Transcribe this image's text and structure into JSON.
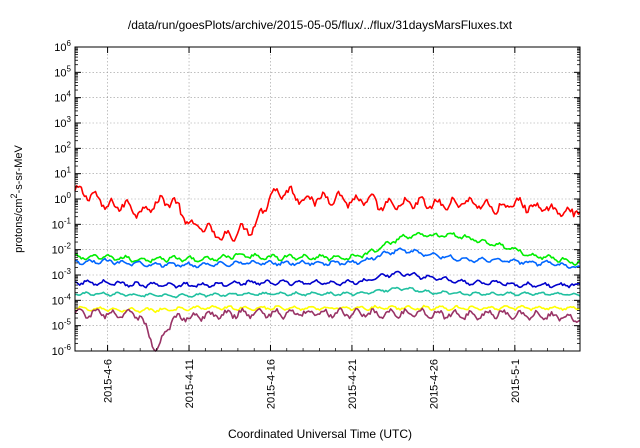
{
  "chart_data": {
    "type": "line",
    "title": "/data/run/goesPlots/archive/2015-05-05/flux/../flux/31daysMarsFluxes.txt",
    "xlabel": "Coordinated Universal Time (UTC)",
    "ylabel": "protons/cm2-s-sr-MeV",
    "ylabel_parts": {
      "pre": "protons/cm",
      "sup": "2",
      "post": "-s-sr-MeV"
    },
    "yscale": "log",
    "ylim": [
      1e-06,
      1000000.0
    ],
    "yticks": [
      {
        "base": "10",
        "exp": "-6"
      },
      {
        "base": "10",
        "exp": "-5"
      },
      {
        "base": "10",
        "exp": "-4"
      },
      {
        "base": "10",
        "exp": "-3"
      },
      {
        "base": "10",
        "exp": "-2"
      },
      {
        "base": "10",
        "exp": "-1"
      },
      {
        "base": "10",
        "exp": "0"
      },
      {
        "base": "10",
        "exp": "1"
      },
      {
        "base": "10",
        "exp": "2"
      },
      {
        "base": "10",
        "exp": "3"
      },
      {
        "base": "10",
        "exp": "4"
      },
      {
        "base": "10",
        "exp": "5"
      },
      {
        "base": "10",
        "exp": "6"
      }
    ],
    "xlim": [
      "2015-04-04",
      "2015-05-05"
    ],
    "xticks": [
      "2015-4-6",
      "2015-4-11",
      "2015-4-16",
      "2015-4-21",
      "2015-4-26",
      "2015-5-1"
    ],
    "grid": true,
    "series": [
      {
        "color": "#ff0000",
        "x": [
          "2015-04-04",
          "2015-04-05",
          "2015-04-06",
          "2015-04-07",
          "2015-04-08",
          "2015-04-09",
          "2015-04-10",
          "2015-04-11",
          "2015-04-12",
          "2015-04-13",
          "2015-04-14",
          "2015-04-15",
          "2015-04-16",
          "2015-04-17",
          "2015-04-18",
          "2015-04-19",
          "2015-04-20",
          "2015-04-21",
          "2015-04-22",
          "2015-04-23",
          "2015-04-24",
          "2015-04-25",
          "2015-04-26",
          "2015-04-27",
          "2015-04-28",
          "2015-04-29",
          "2015-04-30",
          "2015-05-01",
          "2015-05-02",
          "2015-05-03",
          "2015-05-04",
          "2015-05-05"
        ],
        "values": [
          2.0,
          1.5,
          0.5,
          0.6,
          0.3,
          0.7,
          0.9,
          0.1,
          0.07,
          0.03,
          0.05,
          0.08,
          1.5,
          2.0,
          1.0,
          1.0,
          1.2,
          0.8,
          0.9,
          0.5,
          0.6,
          0.7,
          0.6,
          0.6,
          0.8,
          0.6,
          0.4,
          0.7,
          0.5,
          0.4,
          0.3,
          0.4
        ]
      },
      {
        "color": "#00ee00",
        "x": [
          "2015-04-04",
          "2015-04-06",
          "2015-04-08",
          "2015-04-10",
          "2015-04-12",
          "2015-04-14",
          "2015-04-16",
          "2015-04-18",
          "2015-04-20",
          "2015-04-21",
          "2015-04-22",
          "2015-04-23",
          "2015-04-24",
          "2015-04-25",
          "2015-04-26",
          "2015-04-27",
          "2015-04-28",
          "2015-04-30",
          "2015-05-01",
          "2015-05-02",
          "2015-05-03",
          "2015-05-05"
        ],
        "values": [
          0.005,
          0.005,
          0.004,
          0.0045,
          0.004,
          0.006,
          0.005,
          0.005,
          0.005,
          0.005,
          0.007,
          0.015,
          0.03,
          0.04,
          0.035,
          0.04,
          0.03,
          0.015,
          0.01,
          0.006,
          0.005,
          0.003
        ]
      },
      {
        "color": "#0066ff",
        "x": [
          "2015-04-04",
          "2015-04-06",
          "2015-04-08",
          "2015-04-10",
          "2015-04-12",
          "2015-04-14",
          "2015-04-16",
          "2015-04-18",
          "2015-04-20",
          "2015-04-21",
          "2015-04-22",
          "2015-04-23",
          "2015-04-24",
          "2015-04-25",
          "2015-04-26",
          "2015-04-27",
          "2015-04-28",
          "2015-04-30",
          "2015-05-01",
          "2015-05-02",
          "2015-05-03",
          "2015-05-05"
        ],
        "values": [
          0.003,
          0.0035,
          0.0028,
          0.0025,
          0.0025,
          0.003,
          0.003,
          0.003,
          0.003,
          0.003,
          0.004,
          0.007,
          0.01,
          0.008,
          0.006,
          0.005,
          0.004,
          0.004,
          0.0035,
          0.003,
          0.003,
          0.002
        ]
      },
      {
        "color": "#0000cc",
        "x": [
          "2015-04-04",
          "2015-04-06",
          "2015-04-08",
          "2015-04-10",
          "2015-04-12",
          "2015-04-14",
          "2015-04-16",
          "2015-04-18",
          "2015-04-20",
          "2015-04-21",
          "2015-04-22",
          "2015-04-23",
          "2015-04-24",
          "2015-04-25",
          "2015-04-26",
          "2015-04-27",
          "2015-04-28",
          "2015-04-30",
          "2015-05-01",
          "2015-05-02",
          "2015-05-03",
          "2015-05-05"
        ],
        "values": [
          0.0005,
          0.0005,
          0.0004,
          0.0004,
          0.0004,
          0.0005,
          0.0005,
          0.0005,
          0.0005,
          0.0005,
          0.0006,
          0.001,
          0.0012,
          0.0009,
          0.0008,
          0.0006,
          0.0005,
          0.0005,
          0.0004,
          0.0004,
          0.0004,
          0.0004
        ]
      },
      {
        "color": "#20c0a0",
        "x": [
          "2015-04-04",
          "2015-04-06",
          "2015-04-08",
          "2015-04-10",
          "2015-04-12",
          "2015-04-14",
          "2015-04-16",
          "2015-04-18",
          "2015-04-20",
          "2015-04-21",
          "2015-04-22",
          "2015-04-23",
          "2015-04-24",
          "2015-04-25",
          "2015-04-26",
          "2015-04-27",
          "2015-04-28",
          "2015-04-30",
          "2015-05-01",
          "2015-05-02",
          "2015-05-03",
          "2015-05-05"
        ],
        "values": [
          0.00018,
          0.00018,
          0.00016,
          0.00015,
          0.00016,
          0.00018,
          0.00018,
          0.00018,
          0.00018,
          0.00018,
          0.0002,
          0.00025,
          0.0003,
          0.00025,
          0.0002,
          0.0002,
          0.00018,
          0.00018,
          0.00018,
          0.00018,
          0.00018,
          0.00017
        ]
      },
      {
        "color": "#ffff00",
        "x": [
          "2015-04-04",
          "2015-04-08",
          "2015-04-12",
          "2015-04-16",
          "2015-04-20",
          "2015-04-24",
          "2015-04-28",
          "2015-05-02",
          "2015-05-05"
        ],
        "values": [
          5e-05,
          4e-05,
          5e-05,
          5e-05,
          5e-05,
          5e-05,
          5e-05,
          5e-05,
          5e-05
        ]
      },
      {
        "color": "#993366",
        "x": [
          "2015-04-04",
          "2015-04-06",
          "2015-04-08",
          "2015-04-09",
          "2015-04-10",
          "2015-04-12",
          "2015-04-14",
          "2015-04-16",
          "2015-04-18",
          "2015-04-20",
          "2015-04-22",
          "2015-04-24",
          "2015-04-26",
          "2015-04-28",
          "2015-04-30",
          "2015-05-02",
          "2015-05-05"
        ],
        "values": [
          3e-05,
          3e-05,
          2.5e-05,
          1e-06,
          2e-05,
          2.5e-05,
          3e-05,
          3e-05,
          3e-05,
          3e-05,
          3e-05,
          3e-05,
          3e-05,
          2.5e-05,
          3e-05,
          2.5e-05,
          2e-05
        ]
      }
    ]
  }
}
